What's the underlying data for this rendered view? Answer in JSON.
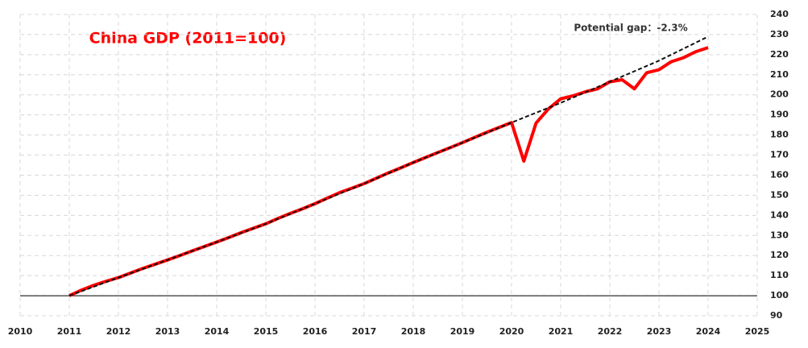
{
  "chart_data": {
    "type": "line",
    "title": "China GDP (2011=100)",
    "annotation": "Potential gap：-2.3%",
    "xlim": [
      2010,
      2025
    ],
    "xticks": [
      2010,
      2011,
      2012,
      2013,
      2014,
      2015,
      2016,
      2017,
      2018,
      2019,
      2020,
      2021,
      2022,
      2023,
      2024,
      2025
    ],
    "ylim": [
      90,
      240
    ],
    "yticks": [
      90,
      100,
      110,
      120,
      130,
      140,
      150,
      160,
      170,
      180,
      190,
      200,
      210,
      220,
      230,
      240
    ],
    "baseline": 100,
    "grid": true,
    "series": [
      {
        "name": "China GDP",
        "color": "#ff0000",
        "dashed": false,
        "x": [
          2011,
          2011.25,
          2011.5,
          2011.75,
          2012,
          2012.25,
          2012.5,
          2012.75,
          2013,
          2013.25,
          2013.5,
          2013.75,
          2014,
          2014.25,
          2014.5,
          2014.75,
          2015,
          2015.25,
          2015.5,
          2015.75,
          2016,
          2016.25,
          2016.5,
          2016.75,
          2017,
          2017.25,
          2017.5,
          2017.75,
          2018,
          2018.25,
          2018.5,
          2018.75,
          2019,
          2019.25,
          2019.5,
          2019.75,
          2020,
          2020.25,
          2020.5,
          2020.75,
          2021,
          2021.25,
          2021.5,
          2021.75,
          2022,
          2022.25,
          2022.5,
          2022.75,
          2023,
          2023.25,
          2023.5,
          2023.75,
          2024
        ],
        "values": [
          100,
          102.8,
          105.2,
          107.2,
          109,
          111.3,
          113.6,
          115.7,
          117.8,
          120,
          122.3,
          124.5,
          126.7,
          129,
          131.4,
          133.6,
          135.8,
          138.5,
          141,
          143.3,
          145.8,
          148.6,
          151.3,
          153.5,
          155.8,
          158.5,
          161.2,
          163.7,
          166.3,
          168.8,
          171.3,
          173.7,
          176.2,
          178.8,
          181.4,
          183.8,
          186.2,
          167,
          186,
          193,
          198,
          199.5,
          201.5,
          203,
          206.5,
          207.5,
          203,
          211,
          212.5,
          216.5,
          218.5,
          221.5,
          223.5
        ]
      },
      {
        "name": "Potential",
        "color": "#111111",
        "dashed": true,
        "x": [
          2011,
          2012,
          2013,
          2014,
          2015,
          2016,
          2017,
          2018,
          2019,
          2020,
          2021,
          2022,
          2023,
          2024
        ],
        "values": [
          100,
          109,
          117.8,
          126.7,
          135.8,
          145.8,
          155.8,
          166.3,
          176.2,
          186.2,
          196,
          206.5,
          217,
          229
        ]
      }
    ]
  }
}
